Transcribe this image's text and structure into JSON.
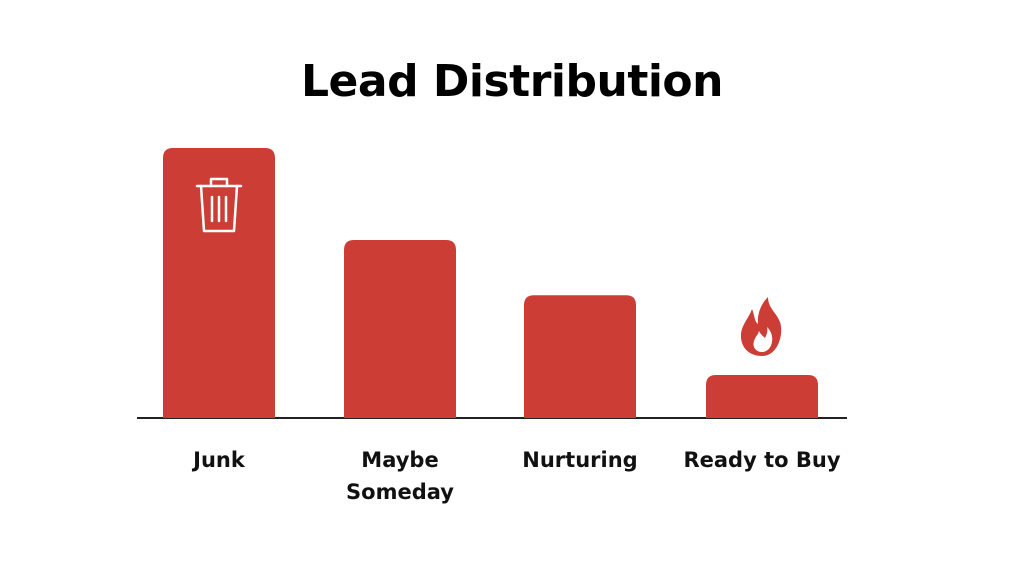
{
  "chart_data": {
    "type": "bar",
    "title": "Lead Distribution",
    "categories": [
      "Junk",
      "Maybe Someday",
      "Nurturing",
      "Ready to Buy"
    ],
    "values": [
      44,
      29,
      20,
      7
    ],
    "color": "#cc3d35",
    "ylim": [
      0,
      44
    ]
  }
}
